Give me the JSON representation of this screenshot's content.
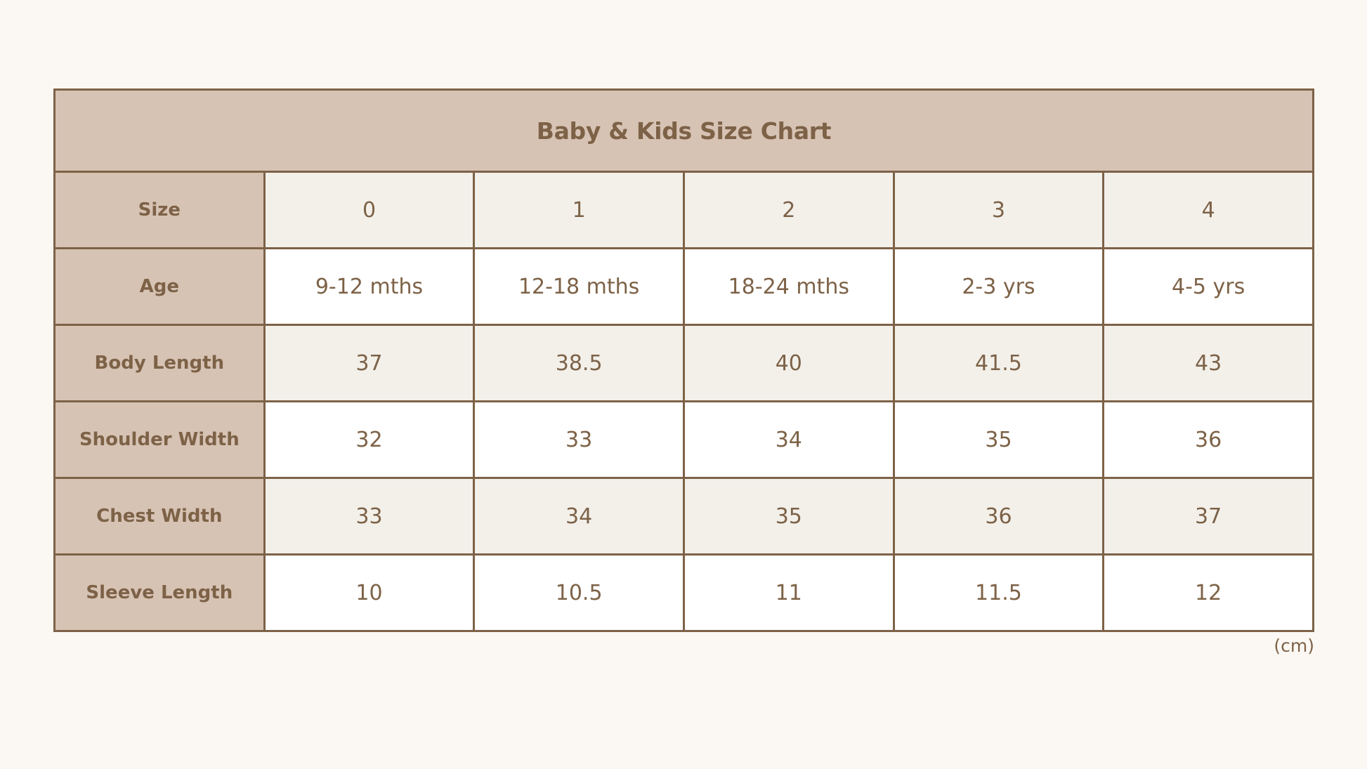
{
  "chart_data": {
    "type": "table",
    "title": "Baby & Kids Size Chart",
    "columns": [
      "0",
      "1",
      "2",
      "3",
      "4"
    ],
    "rows": [
      {
        "label": "Size",
        "values": [
          "0",
          "1",
          "2",
          "3",
          "4"
        ]
      },
      {
        "label": "Age",
        "values": [
          "9-12 mths",
          "12-18 mths",
          "18-24 mths",
          "2-3 yrs",
          "4-5 yrs"
        ]
      },
      {
        "label": "Body Length",
        "values": [
          "37",
          "38.5",
          "40",
          "41.5",
          "43"
        ]
      },
      {
        "label": "Shoulder Width",
        "values": [
          "32",
          "33",
          "34",
          "35",
          "36"
        ]
      },
      {
        "label": "Chest Width",
        "values": [
          "33",
          "34",
          "35",
          "36",
          "37"
        ]
      },
      {
        "label": "Sleeve Length",
        "values": [
          "10",
          "10.5",
          "11",
          "11.5",
          "12"
        ]
      }
    ],
    "unit": "(cm)"
  },
  "colors": {
    "background": "#fbf8f3",
    "header_fill": "#d7c3b4",
    "tinted_row": "#f3f0ea",
    "white_row": "#ffffff",
    "text_and_border": "#7d6247"
  }
}
